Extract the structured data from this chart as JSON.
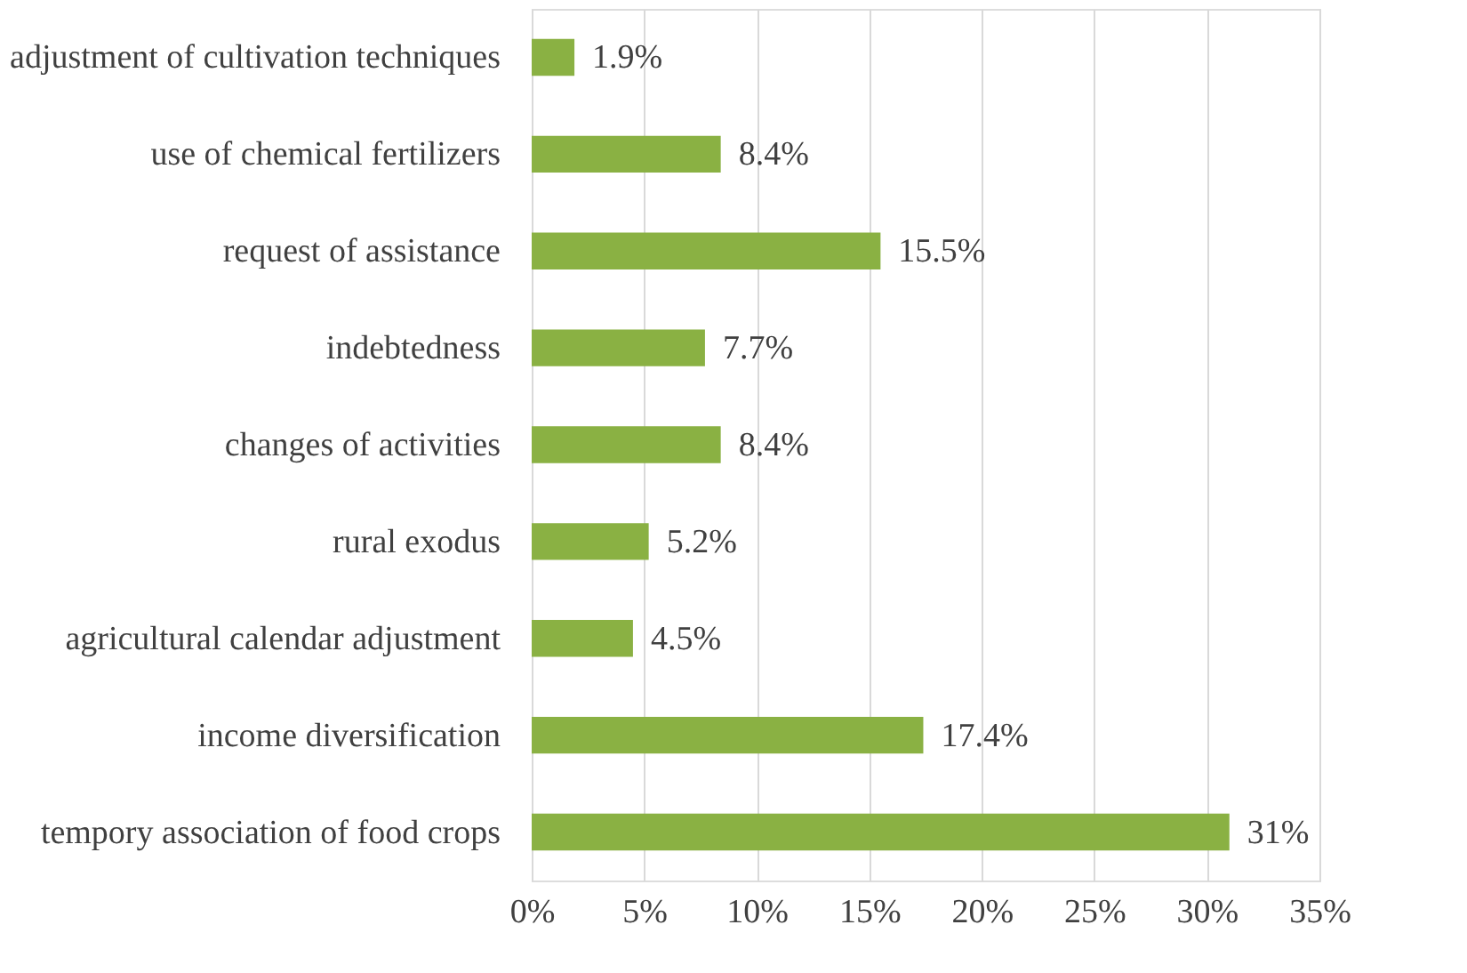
{
  "chart_data": {
    "type": "bar",
    "orientation": "horizontal",
    "categories": [
      "adjustment of cultivation techniques",
      "use of chemical fertilizers",
      "request of assistance",
      "indebtedness",
      "changes of activities",
      "rural exodus",
      "agricultural calendar adjustment",
      "income diversification",
      "tempory association of food crops"
    ],
    "values": [
      1.9,
      8.4,
      15.5,
      7.7,
      8.4,
      5.2,
      4.5,
      17.4,
      31
    ],
    "value_labels": [
      "1.9%",
      "8.4%",
      "15.5%",
      "7.7%",
      "8.4%",
      "5.2%",
      "4.5%",
      "17.4%",
      "31%"
    ],
    "color": "#8ab143",
    "xlim": [
      0,
      35
    ],
    "xticks": [
      {
        "value": 0,
        "label": "0%"
      },
      {
        "value": 5,
        "label": "5%"
      },
      {
        "value": 10,
        "label": "10%"
      },
      {
        "value": 15,
        "label": "15%"
      },
      {
        "value": 20,
        "label": "20%"
      },
      {
        "value": 25,
        "label": "25%"
      },
      {
        "value": 30,
        "label": "30%"
      },
      {
        "value": 35,
        "label": "35%"
      }
    ],
    "grid": "x"
  }
}
